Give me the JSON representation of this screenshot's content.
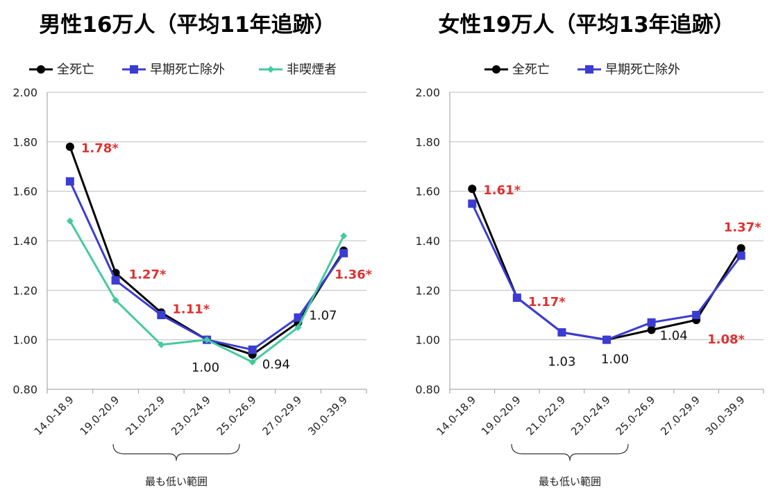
{
  "chart_data": [
    {
      "type": "line",
      "title": "男性16万人（平均11年追跡）",
      "categories": [
        "14.0-18.9",
        "19.0-20.9",
        "21.0-22.9",
        "23.0-24.9",
        "25.0-26.9",
        "27.0-29.9",
        "30.0-39.9"
      ],
      "ylim": [
        0.8,
        2.0
      ],
      "yticks": [
        "0.80",
        "1.00",
        "1.20",
        "1.40",
        "1.60",
        "1.80",
        "2.00"
      ],
      "grid": true,
      "legend_position": "top",
      "series": [
        {
          "name": "全死亡",
          "color": "#000000",
          "marker": "circle",
          "values": [
            1.78,
            1.27,
            1.11,
            1.0,
            0.94,
            1.07,
            1.36
          ]
        },
        {
          "name": "早期死亡除外",
          "color": "#3c3cd2",
          "marker": "square",
          "values": [
            1.64,
            1.24,
            1.1,
            1.0,
            0.96,
            1.09,
            1.35
          ]
        },
        {
          "name": "非喫煙者",
          "color": "#45c9a0",
          "marker": "diamond",
          "values": [
            1.48,
            1.16,
            0.98,
            1.0,
            0.91,
            1.05,
            1.42
          ]
        }
      ],
      "annotations": [
        {
          "text": "1.78*",
          "category": "14.0-18.9",
          "value": 1.78,
          "style": "red"
        },
        {
          "text": "1.27*",
          "category": "19.0-20.9",
          "value": 1.27,
          "style": "red"
        },
        {
          "text": "1.11*",
          "category": "21.0-22.9",
          "value": 1.11,
          "style": "red"
        },
        {
          "text": "1.00",
          "category": "23.0-24.9",
          "value": 1.0,
          "style": "black"
        },
        {
          "text": "0.94",
          "category": "25.0-26.9",
          "value": 0.94,
          "style": "black"
        },
        {
          "text": "1.07",
          "category": "27.0-29.9",
          "value": 1.07,
          "style": "black"
        },
        {
          "text": "1.36*",
          "category": "30.0-39.9",
          "value": 1.36,
          "style": "red"
        }
      ],
      "bracket": {
        "text": "最も低い範囲",
        "from": "21.0-22.9",
        "to": "25.0-26.9"
      }
    },
    {
      "type": "line",
      "title": "女性19万人（平均13年追跡）",
      "categories": [
        "14.0-18.9",
        "19.0-20.9",
        "21.0-22.9",
        "23.0-24.9",
        "25.0-26.9",
        "27.0-29.9",
        "30.0-39.9"
      ],
      "ylim": [
        0.8,
        2.0
      ],
      "yticks": [
        "0.80",
        "1.00",
        "1.20",
        "1.40",
        "1.60",
        "1.80",
        "2.00"
      ],
      "grid": true,
      "legend_position": "top",
      "series": [
        {
          "name": "全死亡",
          "color": "#000000",
          "marker": "circle",
          "values": [
            1.61,
            1.17,
            1.03,
            1.0,
            1.04,
            1.08,
            1.37
          ]
        },
        {
          "name": "早期死亡除外",
          "color": "#3c3cd2",
          "marker": "square",
          "values": [
            1.55,
            1.17,
            1.03,
            1.0,
            1.07,
            1.1,
            1.34
          ]
        }
      ],
      "annotations": [
        {
          "text": "1.61*",
          "category": "14.0-18.9",
          "value": 1.61,
          "style": "red"
        },
        {
          "text": "1.17*",
          "category": "19.0-20.9",
          "value": 1.17,
          "style": "red"
        },
        {
          "text": "1.03",
          "category": "21.0-22.9",
          "value": 1.03,
          "style": "black"
        },
        {
          "text": "1.00",
          "category": "23.0-24.9",
          "value": 1.0,
          "style": "black"
        },
        {
          "text": "1.04",
          "category": "25.0-26.9",
          "value": 1.04,
          "style": "black"
        },
        {
          "text": "1.08*",
          "category": "27.0-29.9",
          "value": 1.08,
          "style": "red"
        },
        {
          "text": "1.37*",
          "category": "30.0-39.9",
          "value": 1.37,
          "style": "red"
        }
      ],
      "bracket": {
        "text": "最も低い範囲",
        "from": "21.0-22.9",
        "to": "25.0-26.9"
      }
    }
  ]
}
